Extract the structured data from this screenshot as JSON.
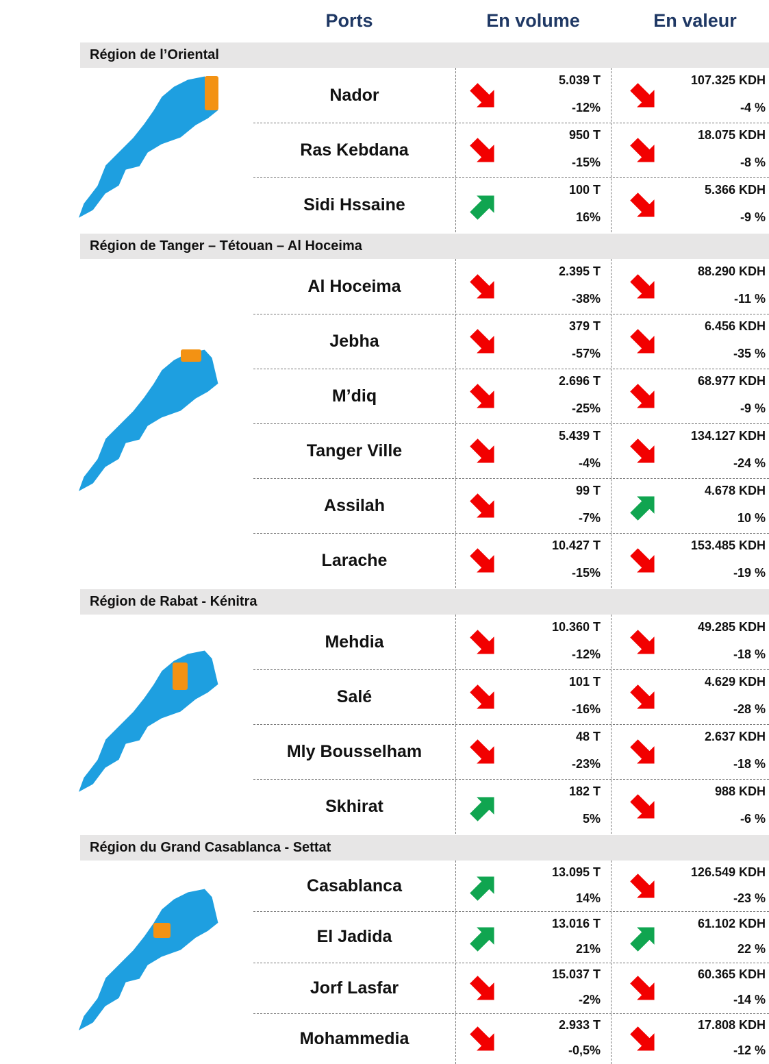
{
  "header": {
    "columns": [
      "Ports",
      "En volume",
      "En valeur"
    ]
  },
  "regions": [
    {
      "name": "Région de l’Oriental",
      "ports": [
        {
          "name": "Nador",
          "volume": "5.039 T",
          "volume_change": "-12%",
          "value": "107.325 KDH",
          "value_change": "-4 %"
        },
        {
          "name": "Ras Kebdana",
          "volume": "950 T",
          "volume_change": "-15%",
          "value": "18.075 KDH",
          "value_change": "-8 %"
        },
        {
          "name": "Sidi Hssaine",
          "volume": "100 T",
          "volume_change": "16%",
          "value": "5.366 KDH",
          "value_change": "-9 %"
        }
      ]
    },
    {
      "name": "Région de Tanger – Tétouan – Al Hoceima",
      "ports": [
        {
          "name": "Al Hoceima",
          "volume": "2.395 T",
          "volume_change": "-38%",
          "value": "88.290 KDH",
          "value_change": "-11 %"
        },
        {
          "name": "Jebha",
          "volume": "379 T",
          "volume_change": "-57%",
          "value": "6.456 KDH",
          "value_change": "-35 %"
        },
        {
          "name": "M’diq",
          "volume": "2.696 T",
          "volume_change": "-25%",
          "value": "68.977 KDH",
          "value_change": "-9 %"
        },
        {
          "name": "Tanger Ville",
          "volume": "5.439 T",
          "volume_change": "-4%",
          "value": "134.127 KDH",
          "value_change": "-24 %"
        },
        {
          "name": "Assilah",
          "volume": "99 T",
          "volume_change": "-7%",
          "value": "4.678 KDH",
          "value_change": "10 %"
        },
        {
          "name": "Larache",
          "volume": "10.427 T",
          "volume_change": "-15%",
          "value": "153.485 KDH",
          "value_change": "-19 %"
        }
      ]
    },
    {
      "name": "Région de Rabat - Kénitra",
      "ports": [
        {
          "name": "Mehdia",
          "volume": "10.360 T",
          "volume_change": "-12%",
          "value": "49.285 KDH",
          "value_change": "-18 %"
        },
        {
          "name": "Salé",
          "volume": "101 T",
          "volume_change": "-16%",
          "value": "4.629 KDH",
          "value_change": "-28 %"
        },
        {
          "name": "Mly Bousselham",
          "volume": "48 T",
          "volume_change": "-23%",
          "value": "2.637 KDH",
          "value_change": "-18 %"
        },
        {
          "name": "Skhirat",
          "volume": "182 T",
          "volume_change": "5%",
          "value": "988 KDH",
          "value_change": "-6 %"
        }
      ]
    },
    {
      "name": "Région du Grand Casablanca - Settat",
      "ports": [
        {
          "name": "Casablanca",
          "volume": "13.095 T",
          "volume_change": "14%",
          "value": "126.549 KDH",
          "value_change": "-23 %"
        },
        {
          "name": "El Jadida",
          "volume": "13.016 T",
          "volume_change": "21%",
          "value": "61.102 KDH",
          "value_change": "22 %"
        },
        {
          "name": "Jorf Lasfar",
          "volume": "15.037 T",
          "volume_change": "-2%",
          "value": "60.365 KDH",
          "value_change": "-14 %"
        },
        {
          "name": "Mohammedia",
          "volume": "2.933 T",
          "volume_change": "-0,5%",
          "value": "17.808 KDH",
          "value_change": "-12 %"
        }
      ]
    }
  ]
}
